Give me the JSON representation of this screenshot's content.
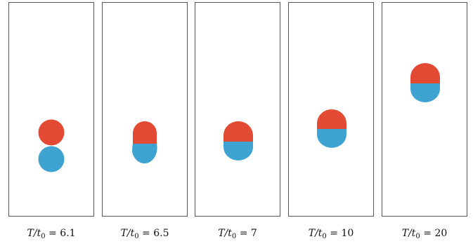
{
  "colors": {
    "upper_drop": "#E24A33",
    "lower_drop": "#3EA3D1",
    "frame": "#555555",
    "background": "#ffffff"
  },
  "panels": [
    {
      "ratio_label": "T/t",
      "subscript": "0",
      "value": "6.1"
    },
    {
      "ratio_label": "T/t",
      "subscript": "0",
      "value": "6.5"
    },
    {
      "ratio_label": "T/t",
      "subscript": "0",
      "value": "7"
    },
    {
      "ratio_label": "T/t",
      "subscript": "0",
      "value": "10"
    },
    {
      "ratio_label": "T/t",
      "subscript": "0",
      "value": "20"
    }
  ]
}
